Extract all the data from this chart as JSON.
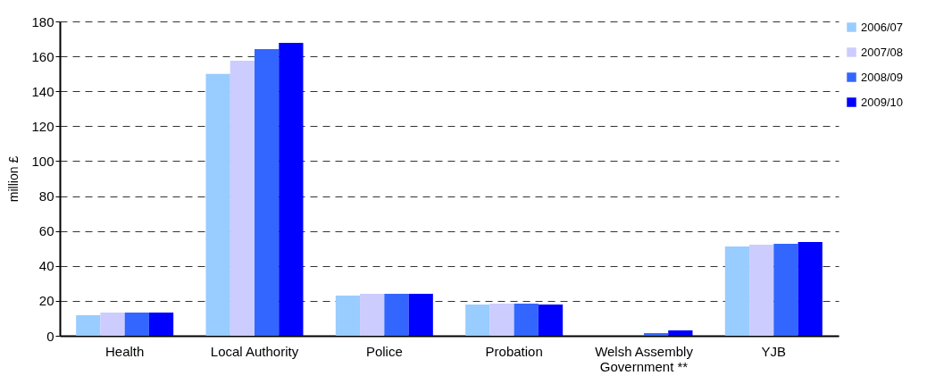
{
  "chart_data": {
    "type": "bar",
    "ylabel": "million £",
    "categories": [
      "Health",
      "Local Authority",
      "Police",
      "Probation",
      "Welsh Assembly Government **",
      "YJB"
    ],
    "series": [
      {
        "name": "2006/07",
        "color": "#99ccff",
        "values": [
          11.8,
          150,
          23,
          17.9,
          null,
          51.1
        ]
      },
      {
        "name": "2007/08",
        "color": "#ccccff",
        "values": [
          13.3,
          157.5,
          24,
          18.4,
          null,
          52.1
        ]
      },
      {
        "name": "2008/09",
        "color": "#3366ff",
        "values": [
          13.3,
          164.1,
          24,
          18.4,
          1.5,
          52.7
        ]
      },
      {
        "name": "2009/10",
        "color": "#0000ff",
        "values": [
          13.3,
          167.7,
          24,
          17.9,
          3.1,
          53.7
        ]
      }
    ],
    "ylim": [
      0,
      180
    ],
    "yticks": [
      0,
      20,
      40,
      60,
      80,
      100,
      120,
      140,
      160,
      180
    ],
    "grid": "y",
    "legend": "right"
  }
}
